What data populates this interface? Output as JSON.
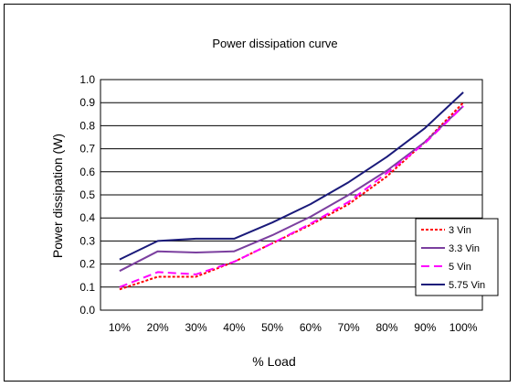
{
  "chart_data": {
    "type": "line",
    "title": "Power dissipation curve",
    "xlabel": "% Load",
    "ylabel": "Power dissipation (W)",
    "categories": [
      "10%",
      "20%",
      "30%",
      "40%",
      "50%",
      "60%",
      "70%",
      "80%",
      "90%",
      "100%"
    ],
    "ylim": [
      0,
      1.0
    ],
    "yticks": [
      "0.0",
      "0.1",
      "0.2",
      "0.3",
      "0.4",
      "0.5",
      "0.6",
      "0.7",
      "0.8",
      "0.9",
      "1.0"
    ],
    "grid": true,
    "legend_position": "right",
    "series": [
      {
        "name": "3 Vin",
        "color": "#ff0000",
        "dash": "dotted",
        "values": [
          0.09,
          0.145,
          0.145,
          0.21,
          0.29,
          0.37,
          0.46,
          0.58,
          0.73,
          0.9
        ]
      },
      {
        "name": "3.3 Vin",
        "color": "#7b3f9f",
        "dash": "solid",
        "values": [
          0.17,
          0.255,
          0.25,
          0.255,
          0.325,
          0.405,
          0.5,
          0.605,
          0.73,
          0.885
        ]
      },
      {
        "name": "5 Vin",
        "color": "#ff00ff",
        "dash": "dashed",
        "values": [
          0.1,
          0.165,
          0.155,
          0.21,
          0.29,
          0.375,
          0.47,
          0.595,
          0.725,
          0.885
        ]
      },
      {
        "name": "5.75 Vin",
        "color": "#1a1a7a",
        "dash": "solid",
        "values": [
          0.22,
          0.3,
          0.31,
          0.31,
          0.38,
          0.46,
          0.555,
          0.665,
          0.79,
          0.945
        ]
      }
    ]
  }
}
